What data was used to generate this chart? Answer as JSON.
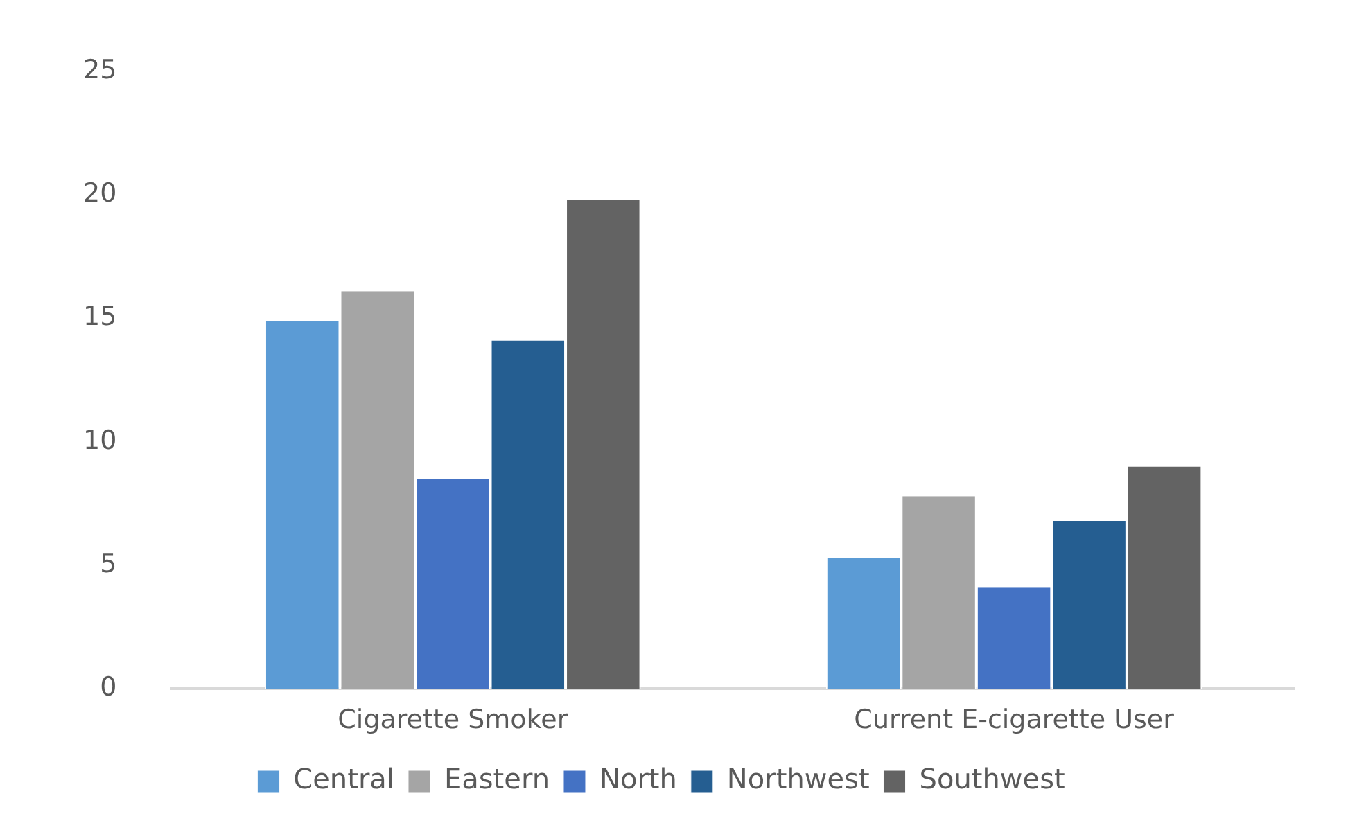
{
  "chart_data": {
    "type": "bar",
    "categories": [
      "Cigarette Smoker",
      "Current E-cigarette User"
    ],
    "series": [
      {
        "name": "Central",
        "color": "#5b9bd5",
        "values": [
          14.9,
          5.3
        ]
      },
      {
        "name": "Eastern",
        "color": "#a5a5a5",
        "values": [
          16.1,
          7.8
        ]
      },
      {
        "name": "North",
        "color": "#4472c4",
        "values": [
          8.5,
          4.1
        ]
      },
      {
        "name": "Northwest",
        "color": "#255e91",
        "values": [
          14.1,
          6.8
        ]
      },
      {
        "name": "Southwest",
        "color": "#636363",
        "values": [
          19.8,
          9.0
        ]
      }
    ],
    "ylim": [
      0,
      25
    ],
    "yticks": [
      0,
      5,
      10,
      15,
      20,
      25
    ],
    "grid": false,
    "legend": "bottom"
  }
}
